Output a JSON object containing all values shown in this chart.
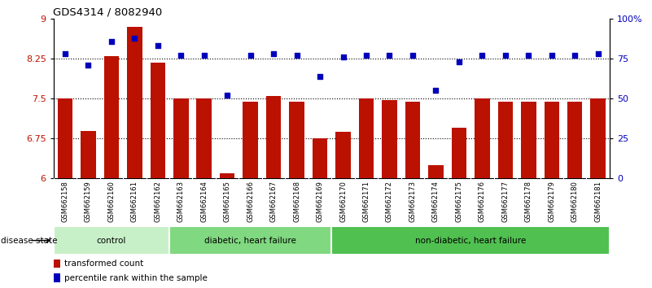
{
  "title": "GDS4314 / 8082940",
  "samples": [
    "GSM662158",
    "GSM662159",
    "GSM662160",
    "GSM662161",
    "GSM662162",
    "GSM662163",
    "GSM662164",
    "GSM662165",
    "GSM662166",
    "GSM662167",
    "GSM662168",
    "GSM662169",
    "GSM662170",
    "GSM662171",
    "GSM662172",
    "GSM662173",
    "GSM662174",
    "GSM662175",
    "GSM662176",
    "GSM662177",
    "GSM662178",
    "GSM662179",
    "GSM662180",
    "GSM662181"
  ],
  "bar_values": [
    7.5,
    6.9,
    8.3,
    8.85,
    8.18,
    7.5,
    7.5,
    6.1,
    7.45,
    7.55,
    7.45,
    6.75,
    6.88,
    7.5,
    7.48,
    7.45,
    6.25,
    6.95,
    7.5,
    7.45,
    7.45,
    7.45,
    7.45,
    7.5
  ],
  "dot_values": [
    78,
    71,
    86,
    88,
    83,
    77,
    77,
    52,
    77,
    78,
    77,
    64,
    76,
    77,
    77,
    77,
    55,
    73,
    77,
    77,
    77,
    77,
    77,
    78
  ],
  "groups": [
    {
      "label": "control",
      "start": 0,
      "end": 5,
      "color": "#c8f0c8"
    },
    {
      "label": "diabetic, heart failure",
      "start": 5,
      "end": 12,
      "color": "#80d880"
    },
    {
      "label": "non-diabetic, heart failure",
      "start": 12,
      "end": 24,
      "color": "#50c050"
    }
  ],
  "ylim_left": [
    6.0,
    9.0
  ],
  "ylim_right": [
    0,
    100
  ],
  "yticks_left": [
    6.0,
    6.75,
    7.5,
    8.25,
    9.0
  ],
  "ytick_labels_left": [
    "6",
    "6.75",
    "7.5",
    "8.25",
    "9"
  ],
  "yticks_right": [
    0,
    25,
    50,
    75,
    100
  ],
  "ytick_labels_right": [
    "0",
    "25",
    "50",
    "75",
    "100%"
  ],
  "bar_color": "#bb1100",
  "dot_color": "#0000bb",
  "hline_values": [
    6.75,
    7.5,
    8.25
  ],
  "legend_bar_label": "transformed count",
  "legend_dot_label": "percentile rank within the sample",
  "disease_state_label": "disease state",
  "bg_color": "#ffffff",
  "tick_bg_color": "#c8c8c8"
}
